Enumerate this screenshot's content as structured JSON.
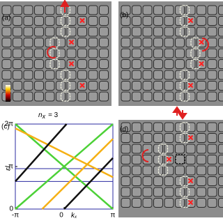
{
  "panels": {
    "a": {
      "label": "(a)",
      "annotation": {
        "symbol": "n",
        "subscript": "x",
        "rest": "= 3"
      }
    },
    "b": {
      "label": "(b)"
    },
    "c": {
      "label": "(c)"
    },
    "d": {
      "label": "(d)"
    }
  },
  "chart_data": {
    "type": "line",
    "x_label": "k",
    "x_label_sub": "x",
    "y_label": "εL",
    "xlim": [
      -1,
      1
    ],
    "ylim": [
      0,
      2
    ],
    "xticks": [
      {
        "value": -1,
        "label": "-π"
      },
      0,
      {
        "value": 1,
        "label": "π"
      }
    ],
    "yticks": [
      0,
      {
        "value": 1,
        "label": "π"
      },
      {
        "value": 2,
        "label": "2π"
      }
    ],
    "series": [
      {
        "color": "#2a2aa0",
        "x": [
          -1,
          1
        ],
        "values": [
          0.95,
          0.95
        ]
      },
      {
        "color": "#2a2aa0",
        "x": [
          -1,
          1
        ],
        "values": [
          0.65,
          0.65
        ]
      },
      {
        "color": "#4cd137",
        "x": [
          -1,
          1
        ],
        "values": [
          0,
          2
        ]
      },
      {
        "color": "#4cd137",
        "x": [
          -1,
          1
        ],
        "values": [
          2,
          0
        ]
      },
      {
        "color": "#f5b014",
        "x": [
          -1,
          1
        ],
        "values": [
          1.9,
          0.75
        ]
      },
      {
        "color": "#f5b014",
        "x": [
          -0.45,
          1
        ],
        "values": [
          0,
          1.65
        ]
      },
      {
        "color": "#111111",
        "x": [
          -1,
          0.05
        ],
        "values": [
          0.65,
          2
        ]
      },
      {
        "color": "#111111",
        "x": [
          0,
          1
        ],
        "values": [
          0,
          1.2
        ]
      }
    ]
  }
}
